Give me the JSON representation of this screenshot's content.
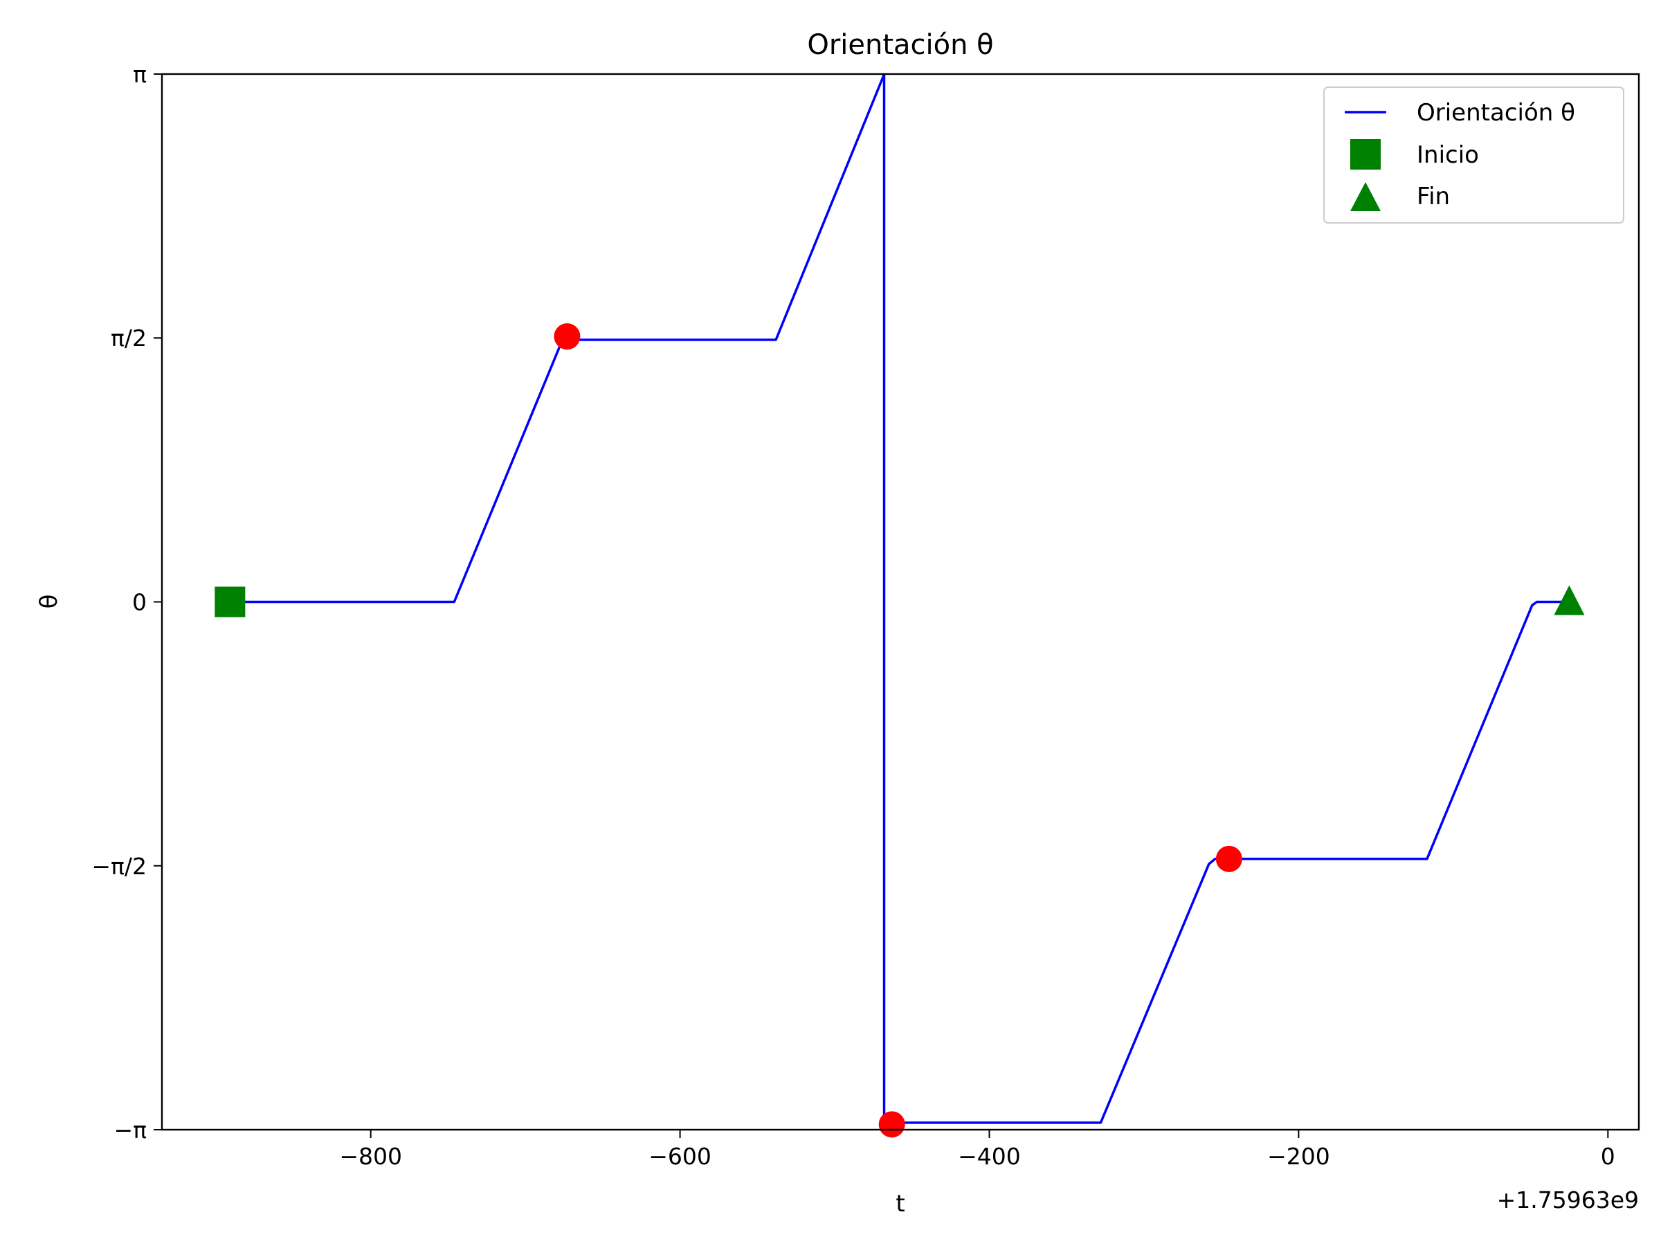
{
  "chart_data": {
    "type": "line",
    "title": "Orientación θ",
    "xlabel": "t",
    "ylabel": "θ",
    "x_offset_label": "+1.75963e9",
    "xlim": [
      -935,
      20
    ],
    "ylim": [
      -3.14159,
      3.14159
    ],
    "x_ticks": [
      -800,
      -600,
      -400,
      -200,
      0
    ],
    "x_tick_labels": [
      "−800",
      "−600",
      "−400",
      "−200",
      "0"
    ],
    "y_ticks": [
      -3.14159,
      -1.5708,
      0,
      1.5708,
      3.14159
    ],
    "y_tick_labels": [
      "−π",
      "−π/2",
      "0",
      "π/2",
      "π"
    ],
    "grid": false,
    "legend_position": "top-right",
    "series": [
      {
        "name": "Orientación θ",
        "color": "#0000ff",
        "style": "line",
        "x": [
          -891,
          -746,
          -676,
          -538,
          -468,
          -468,
          -466,
          -328,
          -258,
          -254,
          -117,
          -49,
          -46,
          -25
        ],
        "y": [
          0,
          0,
          1.56,
          1.56,
          3.14,
          -3.14,
          -3.1,
          -3.1,
          -1.56,
          -1.53,
          -1.53,
          -0.02,
          0,
          0
        ]
      },
      {
        "name": "",
        "color": "#ff0000",
        "style": "marker",
        "marker": "circle",
        "x": [
          -673,
          -463,
          -245
        ],
        "y": [
          1.58,
          -3.11,
          -1.53
        ]
      },
      {
        "name": "Inicio",
        "color": "#008000",
        "style": "marker",
        "marker": "square",
        "x": [
          -891
        ],
        "y": [
          0
        ]
      },
      {
        "name": "Fin",
        "color": "#008000",
        "style": "marker",
        "marker": "triangle",
        "x": [
          -25
        ],
        "y": [
          0
        ]
      }
    ],
    "legend": [
      "Orientación θ",
      "Inicio",
      "Fin"
    ]
  }
}
